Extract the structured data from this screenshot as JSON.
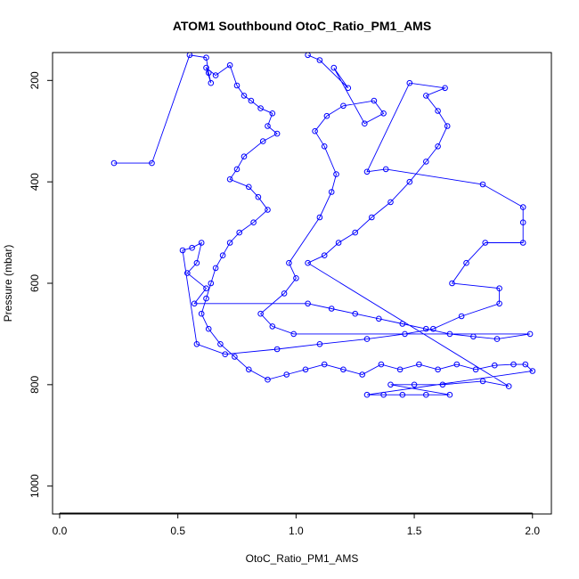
{
  "chart_data": {
    "type": "scatter",
    "title": "ATOM1 Southbound OtoC_Ratio_PM1_AMS",
    "xlabel": "OtoC_Ratio_PM1_AMS",
    "ylabel": "Pressure (mbar)",
    "xlim": [
      -0.03,
      2.08
    ],
    "ylim": [
      1055,
      145
    ],
    "y_reversed": true,
    "x_ticks": [
      0.0,
      0.5,
      1.0,
      1.5,
      2.0
    ],
    "x_tick_labels": [
      "0.0",
      "0.5",
      "1.0",
      "1.5",
      "2.0"
    ],
    "y_ticks": [
      200,
      400,
      600,
      800,
      1000
    ],
    "y_tick_labels": [
      "200",
      "400",
      "600",
      "800",
      "1000"
    ],
    "grid": false,
    "legend": "none",
    "series": [
      {
        "marker": "open-circle",
        "line": true,
        "color": "#0000ff",
        "points": [
          [
            0.23,
            363
          ],
          [
            0.39,
            363
          ],
          [
            0.55,
            150
          ],
          [
            0.62,
            155
          ],
          [
            0.63,
            185
          ],
          [
            0.64,
            205
          ],
          [
            0.62,
            175
          ],
          [
            0.66,
            190
          ],
          [
            0.72,
            170
          ],
          [
            0.75,
            210
          ],
          [
            0.78,
            230
          ],
          [
            0.81,
            240
          ],
          [
            0.85,
            255
          ],
          [
            0.9,
            265
          ],
          [
            0.88,
            290
          ],
          [
            0.92,
            305
          ],
          [
            0.86,
            320
          ],
          [
            0.78,
            350
          ],
          [
            0.75,
            375
          ],
          [
            0.72,
            395
          ],
          [
            0.8,
            410
          ],
          [
            0.84,
            430
          ],
          [
            0.88,
            455
          ],
          [
            0.82,
            480
          ],
          [
            0.76,
            500
          ],
          [
            0.72,
            520
          ],
          [
            0.69,
            545
          ],
          [
            0.66,
            570
          ],
          [
            0.64,
            600
          ],
          [
            0.62,
            630
          ],
          [
            0.6,
            660
          ],
          [
            0.63,
            690
          ],
          [
            0.68,
            720
          ],
          [
            0.74,
            745
          ],
          [
            0.8,
            770
          ],
          [
            0.88,
            790
          ],
          [
            0.96,
            780
          ],
          [
            1.04,
            770
          ],
          [
            1.12,
            760
          ],
          [
            1.2,
            770
          ],
          [
            1.28,
            780
          ],
          [
            1.36,
            760
          ],
          [
            1.44,
            770
          ],
          [
            1.52,
            760
          ],
          [
            1.6,
            770
          ],
          [
            1.68,
            760
          ],
          [
            1.76,
            770
          ],
          [
            1.84,
            762
          ],
          [
            1.92,
            760
          ],
          [
            1.97,
            760
          ],
          [
            2.0,
            773
          ],
          [
            1.3,
            820
          ],
          [
            1.37,
            820
          ],
          [
            1.45,
            820
          ],
          [
            1.55,
            820
          ],
          [
            1.65,
            820
          ],
          [
            1.4,
            800
          ],
          [
            1.5,
            800
          ],
          [
            1.62,
            800
          ],
          [
            1.79,
            793
          ],
          [
            1.9,
            803
          ],
          [
            1.05,
            560
          ],
          [
            1.12,
            545
          ],
          [
            1.18,
            520
          ],
          [
            1.25,
            500
          ],
          [
            1.32,
            470
          ],
          [
            1.4,
            440
          ],
          [
            1.48,
            400
          ],
          [
            1.55,
            360
          ],
          [
            1.6,
            330
          ],
          [
            1.64,
            290
          ],
          [
            1.6,
            260
          ],
          [
            1.55,
            230
          ],
          [
            1.63,
            215
          ],
          [
            1.48,
            205
          ],
          [
            1.3,
            380
          ],
          [
            1.38,
            375
          ],
          [
            1.79,
            405
          ],
          [
            1.96,
            450
          ],
          [
            1.96,
            480
          ],
          [
            1.96,
            520
          ],
          [
            1.8,
            520
          ],
          [
            1.72,
            560
          ],
          [
            1.66,
            600
          ],
          [
            1.86,
            610
          ],
          [
            1.86,
            640
          ],
          [
            1.7,
            665
          ],
          [
            1.58,
            690
          ],
          [
            1.46,
            700
          ],
          [
            1.3,
            710
          ],
          [
            1.1,
            720
          ],
          [
            0.92,
            730
          ],
          [
            0.7,
            740
          ],
          [
            0.58,
            720
          ],
          [
            0.52,
            535
          ],
          [
            0.56,
            530
          ],
          [
            0.6,
            520
          ],
          [
            0.58,
            560
          ],
          [
            0.54,
            580
          ],
          [
            0.62,
            610
          ],
          [
            0.57,
            640
          ],
          [
            1.05,
            640
          ],
          [
            1.15,
            650
          ],
          [
            1.25,
            660
          ],
          [
            1.35,
            670
          ],
          [
            1.45,
            680
          ],
          [
            1.55,
            690
          ],
          [
            1.65,
            700
          ],
          [
            1.75,
            705
          ],
          [
            1.85,
            710
          ],
          [
            1.99,
            700
          ],
          [
            0.99,
            700
          ],
          [
            0.9,
            685
          ],
          [
            0.85,
            660
          ],
          [
            0.95,
            620
          ],
          [
            1.0,
            590
          ],
          [
            0.97,
            560
          ],
          [
            1.1,
            470
          ],
          [
            1.15,
            420
          ],
          [
            1.17,
            385
          ],
          [
            1.12,
            330
          ],
          [
            1.08,
            300
          ],
          [
            1.13,
            270
          ],
          [
            1.2,
            250
          ],
          [
            1.33,
            240
          ],
          [
            1.37,
            265
          ],
          [
            1.29,
            285
          ],
          [
            1.16,
            175
          ],
          [
            1.22,
            215
          ],
          [
            1.1,
            160
          ],
          [
            1.05,
            150
          ]
        ]
      }
    ]
  }
}
